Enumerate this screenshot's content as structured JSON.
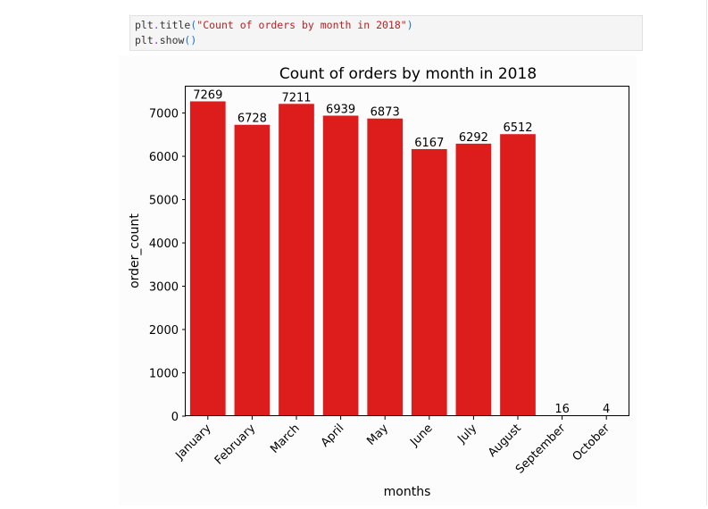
{
  "code": {
    "line1": {
      "obj": "plt",
      "dot": ".",
      "fn": "title",
      "open": "(",
      "arg": "\"Count of orders by month in 2018\"",
      "close": ")"
    },
    "line2": {
      "obj": "plt",
      "dot": ".",
      "fn": "show",
      "call": "()"
    }
  },
  "colors": {
    "bar": "#dd1c1c",
    "code_background": "#f5f5f5"
  },
  "chart_data": {
    "type": "bar",
    "title": "Count of orders by month in 2018",
    "xlabel": "months",
    "ylabel": "order_count",
    "categories": [
      "January",
      "February",
      "March",
      "April",
      "May",
      "June",
      "July",
      "August",
      "September",
      "October"
    ],
    "values": [
      7269,
      6728,
      7211,
      6939,
      6873,
      6167,
      6292,
      6512,
      16,
      4
    ],
    "data_labels": [
      "7269",
      "6728",
      "7211",
      "6939",
      "6873",
      "6167",
      "6292",
      "6512",
      "16",
      "4"
    ],
    "ylim": [
      0,
      7630
    ],
    "yticks": [
      0,
      1000,
      2000,
      3000,
      4000,
      5000,
      6000,
      7000
    ],
    "ytick_labels": [
      "0",
      "1000",
      "2000",
      "3000",
      "4000",
      "5000",
      "6000",
      "7000"
    ],
    "grid": false,
    "legend": "none"
  }
}
